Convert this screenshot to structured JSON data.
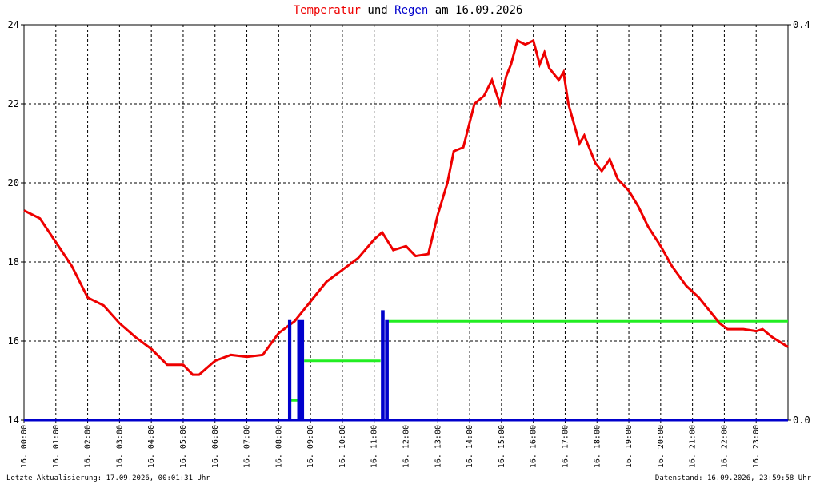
{
  "chart_data": {
    "type": "line",
    "title_and": "und",
    "title_suffix": "am 16.09.2026",
    "xlim": [
      0,
      24
    ],
    "ylim": [
      14,
      24
    ],
    "y2lim": [
      0,
      0.4
    ],
    "xticks": [
      {
        "value": 0,
        "label": "16. 00:00"
      },
      {
        "value": 1,
        "label": "16. 01:00"
      },
      {
        "value": 2,
        "label": "16. 02:00"
      },
      {
        "value": 3,
        "label": "16. 03:00"
      },
      {
        "value": 4,
        "label": "16. 04:00"
      },
      {
        "value": 5,
        "label": "16. 05:00"
      },
      {
        "value": 6,
        "label": "16. 06:00"
      },
      {
        "value": 7,
        "label": "16. 07:00"
      },
      {
        "value": 8,
        "label": "16. 08:00"
      },
      {
        "value": 9,
        "label": "16. 09:00"
      },
      {
        "value": 10,
        "label": "16. 10:00"
      },
      {
        "value": 11,
        "label": "16. 11:00"
      },
      {
        "value": 12,
        "label": "16. 12:00"
      },
      {
        "value": 13,
        "label": "16. 13:00"
      },
      {
        "value": 14,
        "label": "16. 14:00"
      },
      {
        "value": 15,
        "label": "16. 15:00"
      },
      {
        "value": 16,
        "label": "16. 16:00"
      },
      {
        "value": 17,
        "label": "16. 17:00"
      },
      {
        "value": 18,
        "label": "16. 18:00"
      },
      {
        "value": 19,
        "label": "16. 19:00"
      },
      {
        "value": 20,
        "label": "16. 20:00"
      },
      {
        "value": 21,
        "label": "16. 21:00"
      },
      {
        "value": 22,
        "label": "16. 22:00"
      },
      {
        "value": 23,
        "label": "16. 23:00"
      }
    ],
    "yticks": [
      14,
      16,
      18,
      20,
      22,
      24
    ],
    "y2ticks": [
      {
        "value": 0,
        "label": "0.0"
      },
      {
        "value": 0.4,
        "label": "0.4"
      }
    ],
    "grid": true,
    "series": [
      {
        "name": "Temperatur",
        "color": "#ee0000",
        "x": [
          0,
          0.5,
          1,
          1.5,
          2,
          2.5,
          3,
          3.5,
          4,
          4.5,
          5,
          5.3,
          5.5,
          6,
          6.5,
          7,
          7.5,
          8,
          8.5,
          9,
          9.5,
          10,
          10.5,
          11,
          11.25,
          11.6,
          12,
          12.3,
          12.7,
          13,
          13.3,
          13.5,
          13.8,
          14.15,
          14.45,
          14.7,
          14.95,
          15.15,
          15.3,
          15.5,
          15.75,
          16,
          16.2,
          16.35,
          16.5,
          16.8,
          16.95,
          17.1,
          17.45,
          17.6,
          17.95,
          18.15,
          18.4,
          18.65,
          19,
          19.3,
          19.6,
          20,
          20.35,
          20.8,
          21.2,
          21.6,
          21.85,
          22.1,
          22.6,
          23,
          23.2,
          23.5,
          24
        ],
        "values": [
          19.3,
          19.1,
          18.5,
          17.9,
          17.1,
          16.9,
          16.45,
          16.1,
          15.8,
          15.4,
          15.4,
          15.15,
          15.15,
          15.5,
          15.65,
          15.6,
          15.65,
          16.2,
          16.5,
          17,
          17.5,
          17.8,
          18.1,
          18.57,
          18.75,
          18.3,
          18.4,
          18.15,
          18.2,
          19.2,
          20,
          20.8,
          20.9,
          22,
          22.2,
          22.6,
          22,
          22.7,
          23,
          23.6,
          23.5,
          23.6,
          23,
          23.3,
          22.9,
          22.6,
          22.8,
          22,
          21,
          21.2,
          20.5,
          20.3,
          20.6,
          20.1,
          19.8,
          19.4,
          18.9,
          18.4,
          17.9,
          17.4,
          17.1,
          16.7,
          16.45,
          16.3,
          16.3,
          16.25,
          16.3,
          16.1,
          15.85
        ]
      },
      {
        "name": "Regen",
        "color": "#0000cc",
        "axis": "y2",
        "x": [
          0,
          8.33,
          8.33,
          8.36,
          8.36,
          8.62,
          8.62,
          8.66,
          8.66,
          8.72,
          8.72,
          8.76,
          8.76,
          11.25,
          11.25,
          11.29,
          11.29,
          11.38,
          11.38,
          11.42,
          11.42,
          24
        ],
        "values": [
          0,
          0,
          0.1,
          0.1,
          0,
          0,
          0.1,
          0.1,
          0,
          0,
          0.1,
          0.1,
          0,
          0,
          0.11,
          0.11,
          0,
          0,
          0.1,
          0.1,
          0,
          0
        ]
      },
      {
        "color": "#22ee22",
        "axis": "y2",
        "x": [
          8.38,
          8.6,
          8.6,
          8.8,
          11.2,
          11.2,
          11.45,
          24
        ],
        "values": [
          0.02,
          0.02,
          null,
          0.06,
          0.06,
          null,
          0.1,
          0.1
        ]
      }
    ],
    "footer_left": "Letzte Aktualisierung: 17.09.2026, 00:01:31 Uhr",
    "footer_right": "Datenstand: 16.09.2026, 23:59:58 Uhr"
  }
}
